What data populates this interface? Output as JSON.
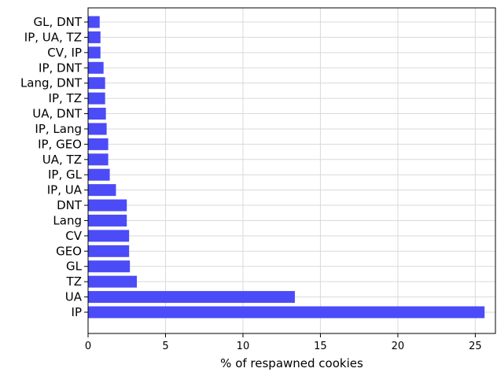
{
  "chart_data": {
    "type": "bar",
    "orientation": "horizontal",
    "categories": [
      "IP",
      "UA",
      "TZ",
      "GL",
      "GEO",
      "CV",
      "Lang",
      "DNT",
      "IP, UA",
      "IP, GL",
      "UA, TZ",
      "IP, GEO",
      "IP, Lang",
      "UA, DNT",
      "IP, TZ",
      "Lang, DNT",
      "IP, DNT",
      "CV, IP",
      "IP, UA, TZ",
      "GL, DNT"
    ],
    "values": [
      25.6,
      13.35,
      3.15,
      2.7,
      2.65,
      2.65,
      2.5,
      2.5,
      1.8,
      1.4,
      1.3,
      1.3,
      1.2,
      1.15,
      1.1,
      1.1,
      1.0,
      0.8,
      0.8,
      0.75
    ],
    "xlabel": "% of respawned cookies",
    "ylabel": "",
    "xlim": [
      0,
      26.3
    ],
    "xticks": [
      0,
      5,
      10,
      15,
      20,
      25
    ],
    "grid": true,
    "bar_color": "#4b4bf7"
  }
}
